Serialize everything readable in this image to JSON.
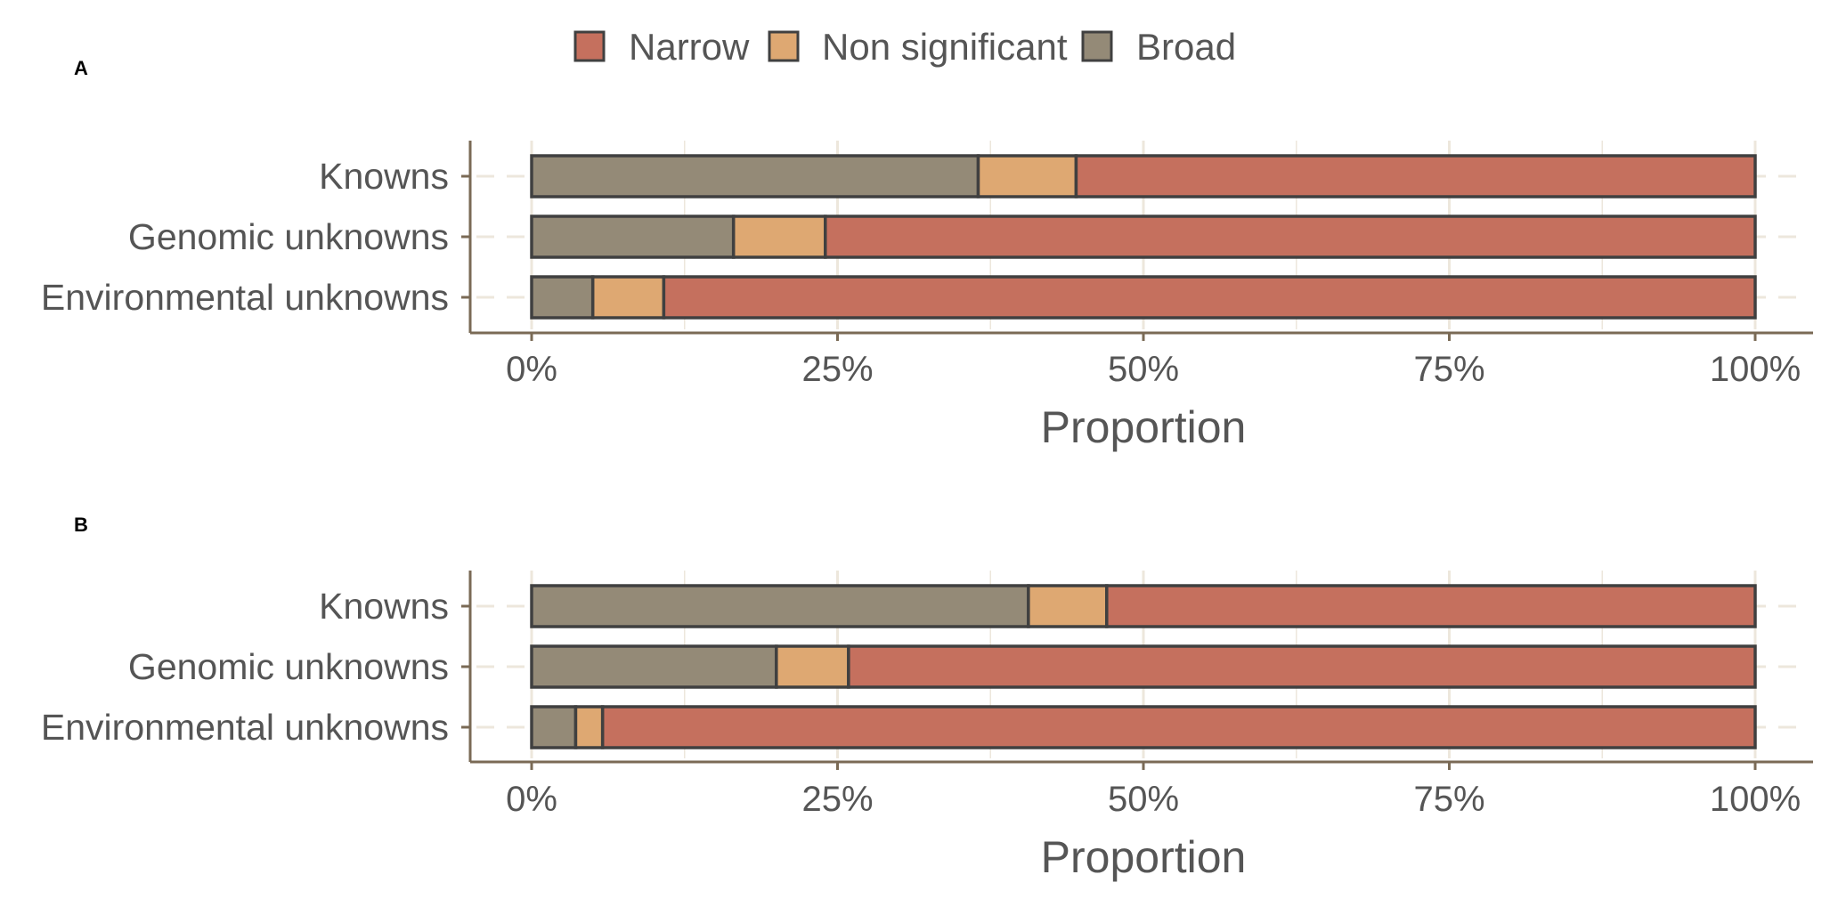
{
  "legend": {
    "items": [
      {
        "name": "Narrow",
        "color": "#C5705E"
      },
      {
        "name": "Non significant",
        "color": "#DEA872"
      },
      {
        "name": "Broad",
        "color": "#948A77"
      }
    ]
  },
  "colors": {
    "axis": "#7A6A55",
    "grid": "#EDE7DC",
    "bar_border": "#404040",
    "text": "#555555"
  },
  "chart_data": [
    {
      "panel": "A",
      "type": "bar",
      "orientation": "horizontal",
      "stacked": true,
      "categories": [
        "Knowns",
        "Genomic unknowns",
        "Environmental unknowns"
      ],
      "series": [
        {
          "name": "Broad",
          "values": [
            36.5,
            16.5,
            5.0
          ]
        },
        {
          "name": "Non significant",
          "values": [
            8.0,
            7.5,
            5.8
          ]
        },
        {
          "name": "Narrow",
          "values": [
            55.5,
            76.0,
            89.2
          ]
        }
      ],
      "xlabel": "Proportion",
      "ylabel": "",
      "xlim": [
        0,
        100
      ],
      "xticks": [
        "0%",
        "25%",
        "50%",
        "75%",
        "100%"
      ]
    },
    {
      "panel": "B",
      "type": "bar",
      "orientation": "horizontal",
      "stacked": true,
      "categories": [
        "Knowns",
        "Genomic unknowns",
        "Environmental unknowns"
      ],
      "series": [
        {
          "name": "Broad",
          "values": [
            40.6,
            20.0,
            3.6
          ]
        },
        {
          "name": "Non significant",
          "values": [
            6.4,
            5.9,
            2.2
          ]
        },
        {
          "name": "Narrow",
          "values": [
            53.0,
            74.1,
            94.2
          ]
        }
      ],
      "xlabel": "Proportion",
      "ylabel": "",
      "xlim": [
        0,
        100
      ],
      "xticks": [
        "0%",
        "25%",
        "50%",
        "75%",
        "100%"
      ]
    }
  ]
}
